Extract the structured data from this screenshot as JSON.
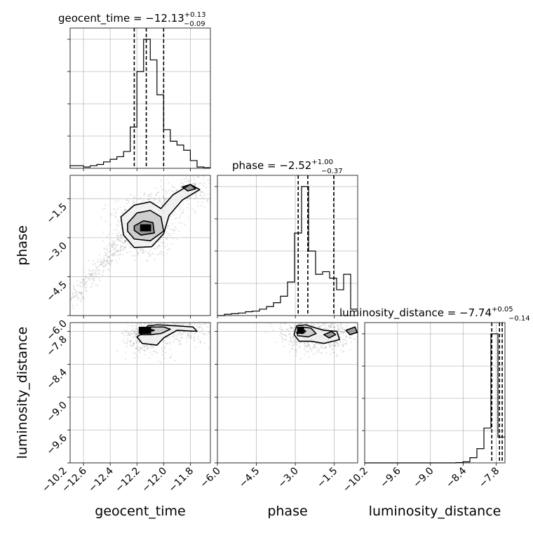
{
  "chart_data": {
    "type": "corner",
    "parameters": [
      "geocent_time",
      "phase",
      "luminosity_distance"
    ],
    "ranges": {
      "geocent_time": [
        -12.7,
        -11.65
      ],
      "phase": [
        -6.0,
        -0.6
      ],
      "luminosity_distance": [
        -10.2,
        -7.64
      ]
    },
    "ticks": {
      "geocent_time": [
        -12.6,
        -12.4,
        -12.2,
        -12.0,
        -11.8
      ],
      "phase": [
        -6.0,
        -4.5,
        -3.0,
        -1.5
      ],
      "luminosity_distance": [
        -10.2,
        -9.6,
        -9.0,
        -8.4,
        -7.8
      ]
    },
    "tick_labels": {
      "geocent_time": [
        "−12.6",
        "−12.4",
        "−12.2",
        "−12.0",
        "−11.8"
      ],
      "phase": [
        "−6.0",
        "−4.5",
        "−3.0",
        "−1.5"
      ],
      "luminosity_distance": [
        "−10.2",
        "−9.6",
        "−9.0",
        "−8.4",
        "−7.8"
      ],
      "phase_y": [
        "−1.5",
        "−3.0",
        "−4.5",
        "−6.0"
      ],
      "luminosity_distance_y": [
        "−7.8",
        "−8.4",
        "−9.0",
        "−9.6",
        "−10.2"
      ]
    },
    "titles": {
      "geocent_time": {
        "prefix": "geocent_time = −12.13",
        "sup": "+0.13",
        "sub": "−0.09"
      },
      "phase": {
        "prefix": "phase = −2.52",
        "sup": "+1.00",
        "sub": "−0.37"
      },
      "luminosity_distance": {
        "prefix": "luminosity_distance = −7.74",
        "sup": "+0.05",
        "sub": "−0.14"
      }
    },
    "medians": {
      "geocent_time": -12.13,
      "phase": -2.52,
      "luminosity_distance": -7.74
    },
    "quantiles": {
      "geocent_time": [
        -12.22,
        -12.13,
        -12.0
      ],
      "phase": [
        -2.89,
        -2.52,
        -1.52
      ],
      "luminosity_distance": [
        -7.88,
        -7.74,
        -7.69
      ]
    },
    "histograms": {
      "geocent_time": {
        "edges": [
          -12.7,
          -12.65,
          -12.6,
          -12.55,
          -12.5,
          -12.45,
          -12.4,
          -12.35,
          -12.3,
          -12.25,
          -12.2,
          -12.15,
          -12.1,
          -12.05,
          -12.0,
          -11.95,
          -11.9,
          -11.85,
          -11.8,
          -11.75,
          -11.7,
          -11.65
        ],
        "counts": [
          0.02,
          0.02,
          0.01,
          0.02,
          0.03,
          0.05,
          0.07,
          0.09,
          0.13,
          0.32,
          0.75,
          1.0,
          0.84,
          0.57,
          0.3,
          0.21,
          0.18,
          0.14,
          0.06,
          0.01,
          0.005
        ]
      },
      "phase": {
        "edges": [
          -6.0,
          -5.73,
          -5.46,
          -5.19,
          -4.92,
          -4.65,
          -4.38,
          -4.11,
          -3.84,
          -3.57,
          -3.3,
          -3.03,
          -2.76,
          -2.49,
          -2.22,
          -1.95,
          -1.68,
          -1.41,
          -1.14,
          -0.87,
          -0.6
        ],
        "counts": [
          0.0,
          0.01,
          0.015,
          0.02,
          0.03,
          0.035,
          0.05,
          0.07,
          0.1,
          0.15,
          0.26,
          0.64,
          1.0,
          0.5,
          0.32,
          0.34,
          0.29,
          0.2,
          0.32,
          0.05
        ]
      },
      "luminosity_distance": {
        "edges": [
          -10.2,
          -10.072,
          -9.944,
          -9.816,
          -9.688,
          -9.56,
          -9.432,
          -9.304,
          -9.176,
          -9.048,
          -8.92,
          -8.792,
          -8.664,
          -8.536,
          -8.408,
          -8.28,
          -8.152,
          -8.024,
          -7.896,
          -7.768,
          -7.64
        ],
        "counts": [
          0,
          0,
          0,
          0,
          0,
          0,
          0,
          0,
          0,
          0,
          0,
          0,
          0,
          0.002,
          0.008,
          0.04,
          0.11,
          0.27,
          1.0,
          0.2
        ]
      }
    },
    "pairs": [
      {
        "x": "geocent_time",
        "y": "phase",
        "peak": [
          -12.15,
          -2.62
        ],
        "contours": [
          [
            [
              -12.32,
              -2.2
            ],
            [
              -12.22,
              -1.75
            ],
            [
              -12.1,
              -1.62
            ],
            [
              -12.02,
              -1.88
            ],
            [
              -11.93,
              -1.35
            ],
            [
              -11.8,
              -0.95
            ],
            [
              -11.73,
              -1.15
            ],
            [
              -11.86,
              -1.55
            ],
            [
              -11.96,
              -2.15
            ],
            [
              -12.0,
              -2.85
            ],
            [
              -12.09,
              -3.35
            ],
            [
              -12.22,
              -3.38
            ],
            [
              -12.3,
              -2.9
            ]
          ],
          [
            [
              -12.27,
              -2.45
            ],
            [
              -12.2,
              -2.05
            ],
            [
              -12.1,
              -1.95
            ],
            [
              -12.02,
              -2.2
            ],
            [
              -12.0,
              -2.75
            ],
            [
              -12.1,
              -3.12
            ],
            [
              -12.22,
              -3.05
            ],
            [
              -12.27,
              -2.75
            ]
          ],
          [
            [
              -12.22,
              -2.55
            ],
            [
              -12.15,
              -2.35
            ],
            [
              -12.08,
              -2.42
            ],
            [
              -12.07,
              -2.82
            ],
            [
              -12.17,
              -2.9
            ],
            [
              -12.22,
              -2.72
            ]
          ],
          [
            [
              -11.86,
              -1.05
            ],
            [
              -11.8,
              -0.95
            ],
            [
              -11.76,
              -1.12
            ],
            [
              -11.82,
              -1.2
            ]
          ]
        ],
        "cores": [
          [
            -12.15,
            -2.62
          ],
          [
            -12.12,
            -2.62
          ]
        ]
      },
      {
        "x": "geocent_time",
        "y": "luminosity_distance",
        "peak": [
          -12.13,
          -7.78
        ],
        "contours": [
          [
            [
              -12.15,
              -7.82
            ],
            [
              -12.12,
              -7.7
            ],
            [
              -12.05,
              -7.68
            ],
            [
              -11.9,
              -7.7
            ],
            [
              -11.78,
              -7.72
            ],
            [
              -11.75,
              -7.8
            ],
            [
              -11.9,
              -7.78
            ],
            [
              -12.0,
              -7.92
            ],
            [
              -12.05,
              -8.05
            ],
            [
              -12.16,
              -8.02
            ],
            [
              -12.2,
              -7.9
            ]
          ],
          [
            [
              -12.17,
              -7.8
            ],
            [
              -12.1,
              -7.72
            ],
            [
              -12.0,
              -7.72
            ],
            [
              -11.95,
              -7.76
            ],
            [
              -12.02,
              -7.84
            ],
            [
              -12.1,
              -7.86
            ],
            [
              -12.17,
              -7.86
            ]
          ],
          [
            [
              -12.18,
              -7.78
            ],
            [
              -12.12,
              -7.75
            ],
            [
              -12.07,
              -7.78
            ],
            [
              -12.12,
              -7.82
            ]
          ]
        ],
        "cores": [
          [
            -12.16,
            -7.78
          ],
          [
            -12.12,
            -7.78
          ]
        ]
      },
      {
        "x": "phase",
        "y": "luminosity_distance",
        "peak": [
          -2.8,
          -7.78
        ],
        "contours": [
          [
            [
              -3.05,
              -7.86
            ],
            [
              -2.95,
              -7.7
            ],
            [
              -2.6,
              -7.68
            ],
            [
              -2.2,
              -7.74
            ],
            [
              -1.9,
              -7.78
            ],
            [
              -1.4,
              -7.8
            ],
            [
              -1.3,
              -7.95
            ],
            [
              -1.9,
              -8.02
            ],
            [
              -2.4,
              -7.98
            ],
            [
              -2.85,
              -7.98
            ]
          ],
          [
            [
              -2.95,
              -7.82
            ],
            [
              -2.75,
              -7.72
            ],
            [
              -2.4,
              -7.74
            ],
            [
              -2.2,
              -7.84
            ],
            [
              -2.5,
              -7.9
            ],
            [
              -2.9,
              -7.88
            ]
          ],
          [
            [
              -2.9,
              -7.8
            ],
            [
              -2.75,
              -7.74
            ],
            [
              -2.6,
              -7.8
            ],
            [
              -2.75,
              -7.84
            ]
          ],
          [
            [
              -1.9,
              -7.86
            ],
            [
              -1.6,
              -7.8
            ],
            [
              -1.45,
              -7.86
            ],
            [
              -1.7,
              -7.92
            ]
          ],
          [
            [
              -1.05,
              -7.78
            ],
            [
              -0.7,
              -7.72
            ],
            [
              -0.62,
              -7.82
            ],
            [
              -0.9,
              -7.86
            ]
          ]
        ],
        "cores": [
          [
            -2.8,
            -7.78
          ]
        ]
      }
    ]
  }
}
